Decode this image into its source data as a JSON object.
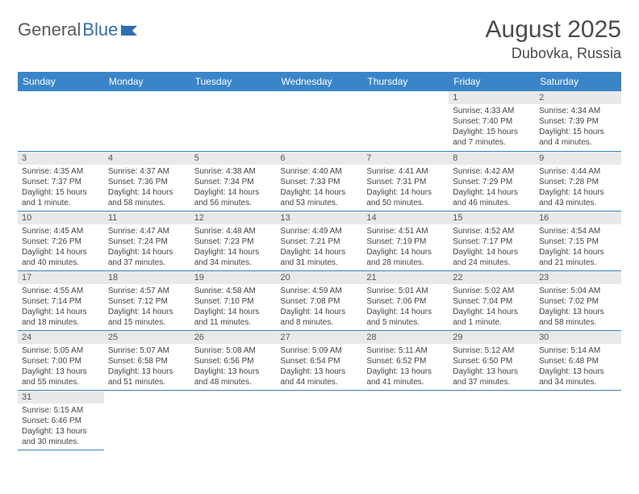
{
  "logo": {
    "text1": "General",
    "text2": "Blue"
  },
  "title": "August 2025",
  "location": "Dubovka, Russia",
  "header_bg": "#3a85c9",
  "header_fg": "#ffffff",
  "daynum_bg": "#e9e9e9",
  "border_color": "#3a85c9",
  "weekdays": [
    "Sunday",
    "Monday",
    "Tuesday",
    "Wednesday",
    "Thursday",
    "Friday",
    "Saturday"
  ],
  "weeks": [
    [
      null,
      null,
      null,
      null,
      null,
      {
        "n": "1",
        "sr": "4:33 AM",
        "ss": "7:40 PM",
        "dl": "15 hours and 7 minutes."
      },
      {
        "n": "2",
        "sr": "4:34 AM",
        "ss": "7:39 PM",
        "dl": "15 hours and 4 minutes."
      }
    ],
    [
      {
        "n": "3",
        "sr": "4:35 AM",
        "ss": "7:37 PM",
        "dl": "15 hours and 1 minute."
      },
      {
        "n": "4",
        "sr": "4:37 AM",
        "ss": "7:36 PM",
        "dl": "14 hours and 58 minutes."
      },
      {
        "n": "5",
        "sr": "4:38 AM",
        "ss": "7:34 PM",
        "dl": "14 hours and 56 minutes."
      },
      {
        "n": "6",
        "sr": "4:40 AM",
        "ss": "7:33 PM",
        "dl": "14 hours and 53 minutes."
      },
      {
        "n": "7",
        "sr": "4:41 AM",
        "ss": "7:31 PM",
        "dl": "14 hours and 50 minutes."
      },
      {
        "n": "8",
        "sr": "4:42 AM",
        "ss": "7:29 PM",
        "dl": "14 hours and 46 minutes."
      },
      {
        "n": "9",
        "sr": "4:44 AM",
        "ss": "7:28 PM",
        "dl": "14 hours and 43 minutes."
      }
    ],
    [
      {
        "n": "10",
        "sr": "4:45 AM",
        "ss": "7:26 PM",
        "dl": "14 hours and 40 minutes."
      },
      {
        "n": "11",
        "sr": "4:47 AM",
        "ss": "7:24 PM",
        "dl": "14 hours and 37 minutes."
      },
      {
        "n": "12",
        "sr": "4:48 AM",
        "ss": "7:23 PM",
        "dl": "14 hours and 34 minutes."
      },
      {
        "n": "13",
        "sr": "4:49 AM",
        "ss": "7:21 PM",
        "dl": "14 hours and 31 minutes."
      },
      {
        "n": "14",
        "sr": "4:51 AM",
        "ss": "7:19 PM",
        "dl": "14 hours and 28 minutes."
      },
      {
        "n": "15",
        "sr": "4:52 AM",
        "ss": "7:17 PM",
        "dl": "14 hours and 24 minutes."
      },
      {
        "n": "16",
        "sr": "4:54 AM",
        "ss": "7:15 PM",
        "dl": "14 hours and 21 minutes."
      }
    ],
    [
      {
        "n": "17",
        "sr": "4:55 AM",
        "ss": "7:14 PM",
        "dl": "14 hours and 18 minutes."
      },
      {
        "n": "18",
        "sr": "4:57 AM",
        "ss": "7:12 PM",
        "dl": "14 hours and 15 minutes."
      },
      {
        "n": "19",
        "sr": "4:58 AM",
        "ss": "7:10 PM",
        "dl": "14 hours and 11 minutes."
      },
      {
        "n": "20",
        "sr": "4:59 AM",
        "ss": "7:08 PM",
        "dl": "14 hours and 8 minutes."
      },
      {
        "n": "21",
        "sr": "5:01 AM",
        "ss": "7:06 PM",
        "dl": "14 hours and 5 minutes."
      },
      {
        "n": "22",
        "sr": "5:02 AM",
        "ss": "7:04 PM",
        "dl": "14 hours and 1 minute."
      },
      {
        "n": "23",
        "sr": "5:04 AM",
        "ss": "7:02 PM",
        "dl": "13 hours and 58 minutes."
      }
    ],
    [
      {
        "n": "24",
        "sr": "5:05 AM",
        "ss": "7:00 PM",
        "dl": "13 hours and 55 minutes."
      },
      {
        "n": "25",
        "sr": "5:07 AM",
        "ss": "6:58 PM",
        "dl": "13 hours and 51 minutes."
      },
      {
        "n": "26",
        "sr": "5:08 AM",
        "ss": "6:56 PM",
        "dl": "13 hours and 48 minutes."
      },
      {
        "n": "27",
        "sr": "5:09 AM",
        "ss": "6:54 PM",
        "dl": "13 hours and 44 minutes."
      },
      {
        "n": "28",
        "sr": "5:11 AM",
        "ss": "6:52 PM",
        "dl": "13 hours and 41 minutes."
      },
      {
        "n": "29",
        "sr": "5:12 AM",
        "ss": "6:50 PM",
        "dl": "13 hours and 37 minutes."
      },
      {
        "n": "30",
        "sr": "5:14 AM",
        "ss": "6:48 PM",
        "dl": "13 hours and 34 minutes."
      }
    ],
    [
      {
        "n": "31",
        "sr": "5:15 AM",
        "ss": "6:46 PM",
        "dl": "13 hours and 30 minutes."
      },
      null,
      null,
      null,
      null,
      null,
      null
    ]
  ],
  "labels": {
    "sunrise": "Sunrise:",
    "sunset": "Sunset:",
    "daylight": "Daylight:"
  }
}
